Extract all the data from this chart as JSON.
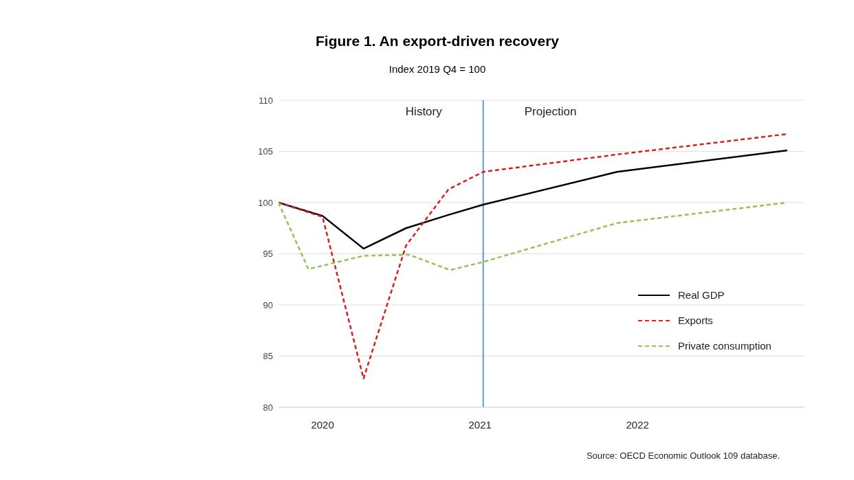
{
  "chart_data": {
    "type": "line",
    "title": "Figure 1. An export-driven recovery",
    "subtitle": "Index 2019 Q4 = 100",
    "x": [
      2019.72,
      2020,
      2020.26,
      2020.53,
      2020.8,
      2021.02,
      2021.87,
      2022.95
    ],
    "series": [
      {
        "name": "Real GDP",
        "color": "#000000",
        "line_style": "solid",
        "values": [
          100,
          98.7,
          95.5,
          97.5,
          98.8,
          99.8,
          103.0,
          105.1
        ]
      },
      {
        "name": "Exports",
        "color": "#d62020",
        "line_style": "dashed",
        "values": [
          100,
          98.6,
          82.8,
          95.8,
          101.3,
          103.0,
          104.7,
          106.7
        ]
      },
      {
        "name": "Private consumption",
        "color": "#92c353",
        "line_style": "dashed",
        "x": [
          2019.72,
          2019.91,
          2020.26,
          2020.55,
          2020.81,
          2021.02,
          2021.87,
          2022.95
        ],
        "values": [
          100,
          93.5,
          94.8,
          94.9,
          93.4,
          94.2,
          98.0,
          100.0
        ]
      }
    ],
    "xlim": [
      2019.72,
      2023.06
    ],
    "xticks": [
      {
        "value": 2020,
        "label": "2020"
      },
      {
        "value": 2021,
        "label": "2021"
      },
      {
        "value": 2022,
        "label": "2022"
      }
    ],
    "ylim": [
      80,
      110
    ],
    "yticks": [
      80,
      85,
      90,
      95,
      100,
      105,
      110
    ],
    "grid": "y",
    "legend": "right",
    "marker": "none",
    "ref_lines": [
      {
        "axis": "x",
        "value": 2021.02,
        "color": "#5b9bd5"
      }
    ],
    "annotations": [
      "History",
      "Projection",
      "Source: OECD Economic Outlook 109 database."
    ]
  }
}
